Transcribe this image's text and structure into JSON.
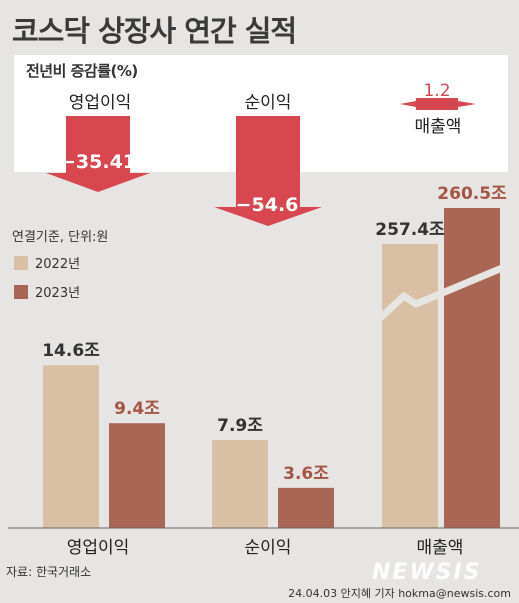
{
  "title": "코스닥 상장사 연간 실적",
  "change_label": "전년비 증감률(%)",
  "unit_note": "연결기준, 단위:원",
  "legend": [
    {
      "label": "2022년",
      "color": "#d9bfa4"
    },
    {
      "label": "2023년",
      "color": "#aa6655"
    }
  ],
  "changes": [
    {
      "label": "영업이익",
      "value": "−35.41",
      "direction": "down"
    },
    {
      "label": "순이익",
      "value": "−54.6",
      "direction": "down"
    },
    {
      "label": "매출액",
      "value": "1.2",
      "direction": "up"
    }
  ],
  "chart_data": {
    "type": "bar",
    "categories": [
      "영업이익",
      "순이익",
      "매출액"
    ],
    "series": [
      {
        "name": "2022년",
        "values": [
          14.6,
          7.9,
          257.4
        ],
        "labels": [
          "14.6조",
          "7.9조",
          "257.4조"
        ]
      },
      {
        "name": "2023년",
        "values": [
          9.4,
          3.6,
          260.5
        ],
        "labels": [
          "9.4조",
          "3.6조",
          "260.5조"
        ]
      }
    ],
    "axis_break_on": "매출액"
  },
  "colors": {
    "down": "#d8464f",
    "up": "#d8464f",
    "label_2023": "#a55544",
    "label_2022": "#333333"
  },
  "source": "자료: 한국거래소",
  "credit": "24.04.03 안지혜 기자 hokma@newsis.com",
  "watermark": "NEWSIS"
}
